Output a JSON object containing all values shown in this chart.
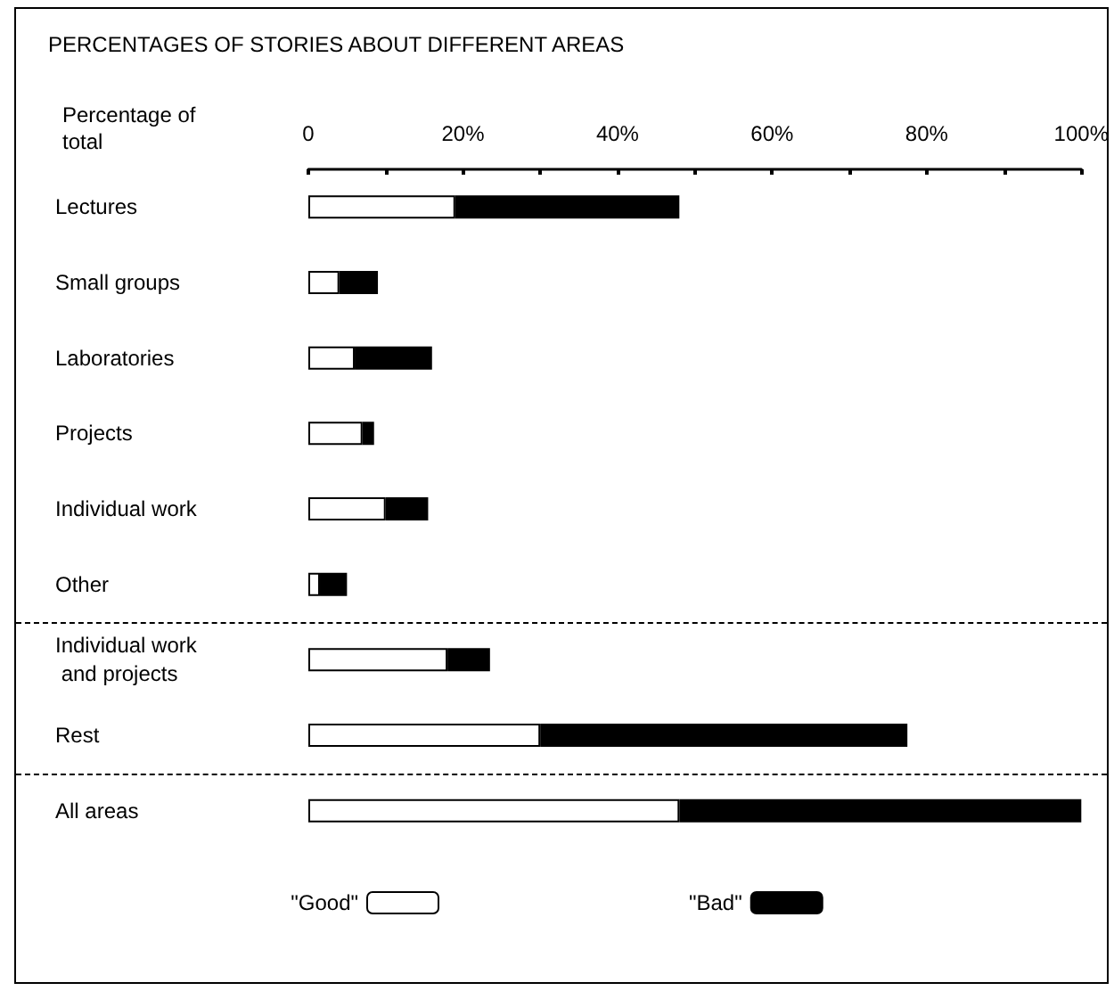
{
  "chart_data": {
    "type": "bar",
    "orientation": "horizontal",
    "stacked": true,
    "title": "PERCENTAGES OF STORIES ABOUT DIFFERENT AREAS",
    "xlabel": "Percentage of total",
    "categories": [
      "Lectures",
      "Small groups",
      "Laboratories",
      "Projects",
      "Individual work",
      "Other",
      "Individual work and projects",
      "Rest",
      "All areas"
    ],
    "series": [
      {
        "name": "\"Good\"",
        "color": "#ffffff",
        "values": [
          19,
          4,
          6,
          7,
          10,
          1.5,
          18,
          30,
          48
        ]
      },
      {
        "name": "\"Bad\"",
        "color": "#000000",
        "values": [
          29,
          5,
          10,
          1.5,
          5.5,
          3.5,
          5.5,
          47.5,
          52
        ]
      }
    ],
    "xlim": [
      0,
      100
    ],
    "xticks": [
      0,
      {
        "value": 10,
        "label": null
      },
      {
        "value": 20,
        "label": "20%"
      },
      {
        "value": 30,
        "label": null
      },
      {
        "value": 40,
        "label": "40%"
      },
      {
        "value": 50,
        "label": null
      },
      {
        "value": 60,
        "label": "60%"
      },
      {
        "value": 70,
        "label": null
      },
      {
        "value": 80,
        "label": "80%"
      },
      {
        "value": 90,
        "label": null
      },
      {
        "value": 100,
        "label": "100%"
      }
    ],
    "grid": false,
    "legend": "bottom"
  }
}
